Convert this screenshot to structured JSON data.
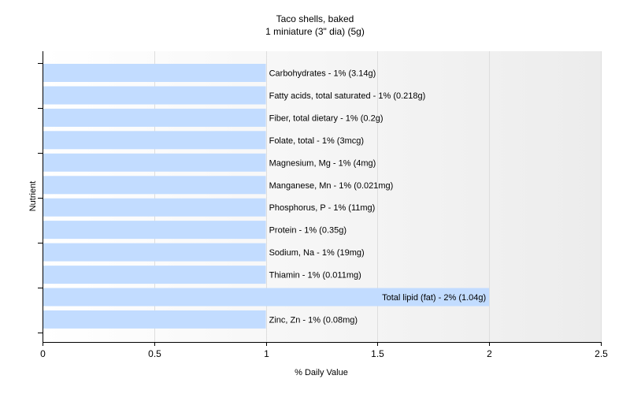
{
  "chart_data": {
    "type": "bar",
    "orientation": "horizontal",
    "title": "Taco shells, baked",
    "subtitle": "1 miniature (3\" dia) (5g)",
    "xlabel": "% Daily Value",
    "ylabel": "Nutrient",
    "xlim": [
      0,
      2.5
    ],
    "xticks": [
      "0",
      "0.5",
      "1",
      "1.5",
      "2",
      "2.5"
    ],
    "grid": true,
    "bar_color": "#c2dcff",
    "categories": [
      "Carbohydrates",
      "Fatty acids, total saturated",
      "Fiber, total dietary",
      "Folate, total",
      "Magnesium, Mg",
      "Manganese, Mn",
      "Phosphorus, P",
      "Protein",
      "Sodium, Na",
      "Thiamin",
      "Total lipid (fat)",
      "Zinc, Zn"
    ],
    "values": [
      1,
      1,
      1,
      1,
      1,
      1,
      1,
      1,
      1,
      1,
      2,
      1
    ],
    "labels": [
      "Carbohydrates - 1% (3.14g)",
      "Fatty acids, total saturated - 1% (0.218g)",
      "Fiber, total dietary - 1% (0.2g)",
      "Folate, total - 1% (3mcg)",
      "Magnesium, Mg - 1% (4mg)",
      "Manganese, Mn - 1% (0.021mg)",
      "Phosphorus, P - 1% (11mg)",
      "Protein - 1% (0.35g)",
      "Sodium, Na - 1% (19mg)",
      "Thiamin - 1% (0.011mg)",
      "Total lipid (fat) - 2% (1.04g)",
      "Zinc, Zn - 1% (0.08mg)"
    ]
  }
}
